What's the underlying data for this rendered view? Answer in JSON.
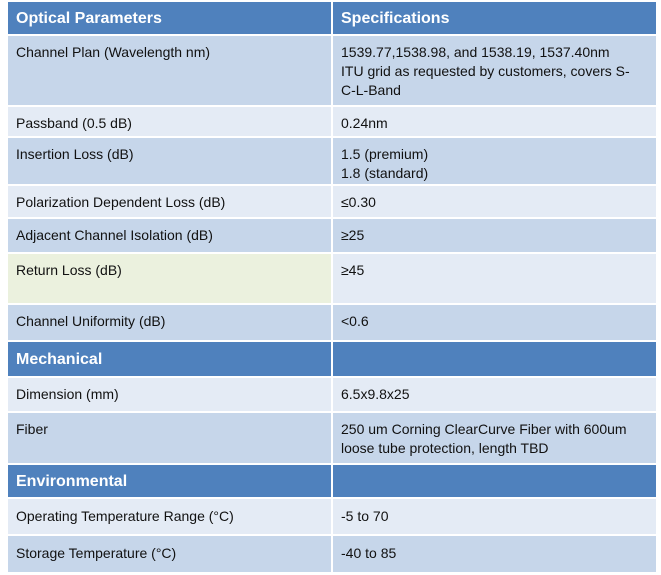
{
  "table": {
    "sections": [
      {
        "title": "Optical Parameters",
        "header": "Specifications",
        "rows": [
          [
            "Channel Plan (Wavelength nm)",
            "1539.77,1538.98, and 1538.19, 1537.40nm\nITU grid as requested by customers, covers S-\nC-L-Band"
          ],
          [
            "Passband (0.5 dB)",
            "0.24nm"
          ],
          [
            "Insertion Loss (dB)",
            "1.5 (premium)\n1.8 (standard)"
          ],
          [
            "Polarization Dependent Loss (dB)",
            "≤0.30"
          ],
          [
            "Adjacent Channel Isolation (dB)",
            "≥25"
          ],
          [
            "Return Loss (dB)",
            "≥45"
          ],
          [
            "Channel Uniformity (dB)",
            "<0.6"
          ]
        ]
      },
      {
        "title": "Mechanical",
        "rows": [
          [
            "Dimension (mm)",
            "6.5x9.8x25"
          ],
          [
            "Fiber",
            "250 um Corning ClearCurve  Fiber with 600um\nloose tube protection, length TBD"
          ]
        ]
      },
      {
        "title": "Environmental",
        "rows": [
          [
            "Operating Temperature Range (°C)",
            "-5  to 70"
          ],
          [
            "Storage Temperature (°C)",
            "-40 to 85"
          ]
        ]
      }
    ]
  }
}
